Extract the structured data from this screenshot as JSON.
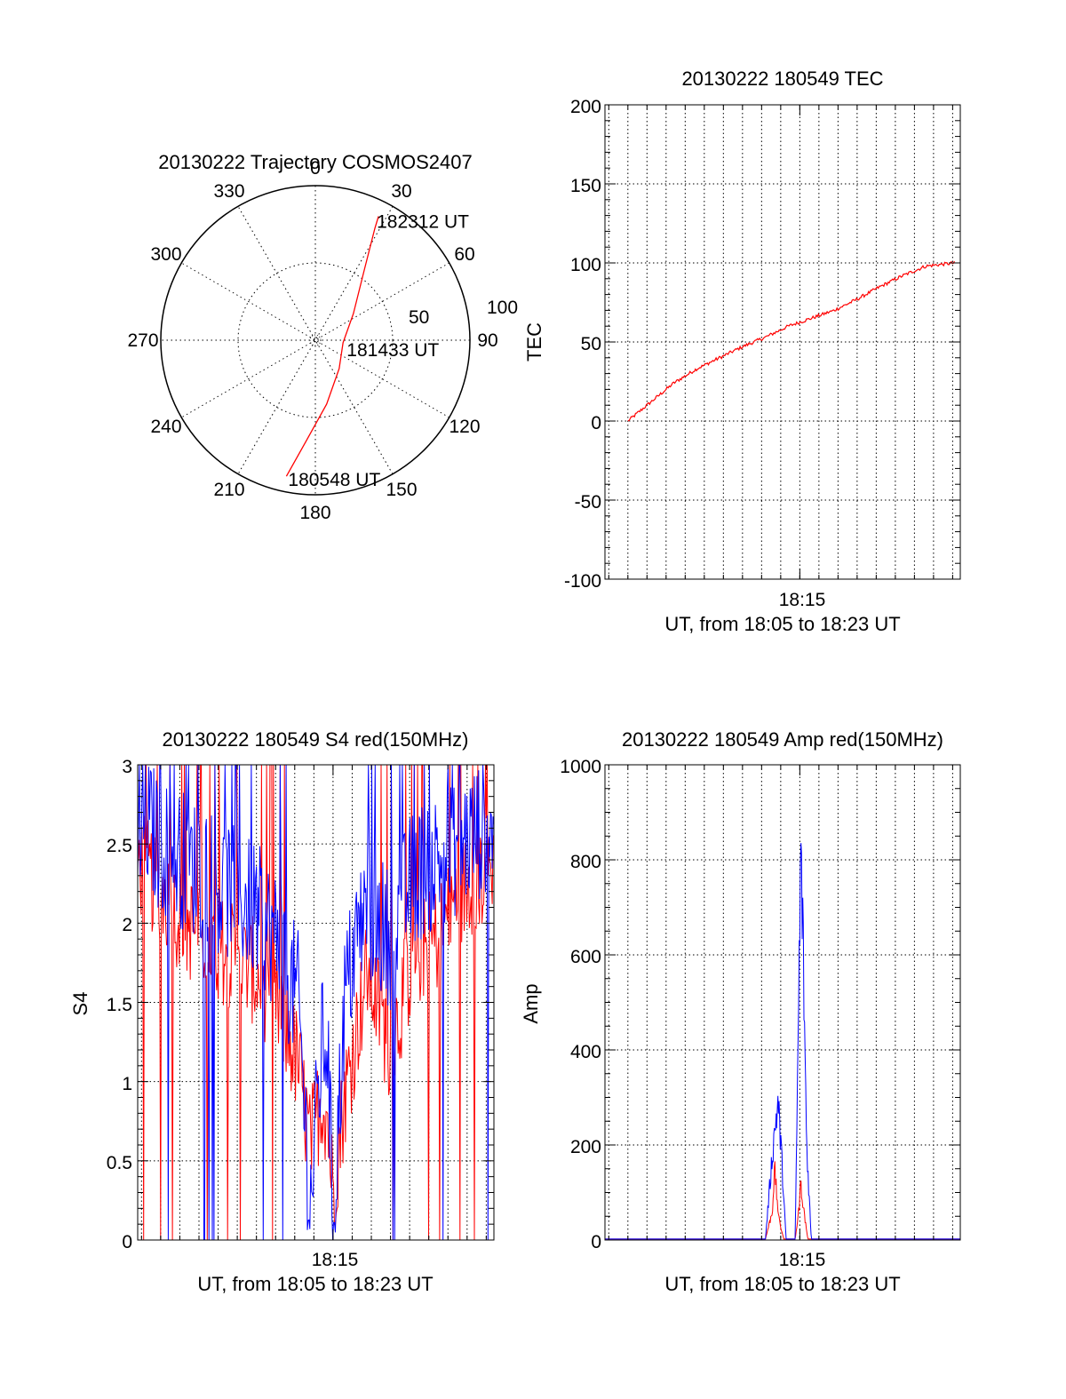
{
  "colors": {
    "red": "#ff0000",
    "blue": "#0000ff",
    "axis": "#000000",
    "grid": "#000000"
  },
  "chart_data": [
    {
      "id": "trajectory",
      "type": "polar",
      "title": "20130222 Trajectory COSMOS2407",
      "angle_labels": [
        "0",
        "30",
        "60",
        "90",
        "120",
        "150",
        "180",
        "210",
        "240",
        "270",
        "300",
        "330"
      ],
      "radius_labels": [
        "50",
        "100"
      ],
      "rlim": [
        0,
        100
      ],
      "grid": true,
      "series": [
        {
          "color": "red",
          "points": [
            {
              "azimuth": 192,
              "zenith": 90
            },
            {
              "azimuth": 185,
              "zenith": 65
            },
            {
              "azimuth": 170,
              "zenith": 42
            },
            {
              "azimuth": 140,
              "zenith": 24
            },
            {
              "azimuth": 95,
              "zenith": 18
            },
            {
              "azimuth": 55,
              "zenith": 30
            },
            {
              "azimuth": 35,
              "zenith": 55
            },
            {
              "azimuth": 28,
              "zenith": 82
            },
            {
              "azimuth": 27,
              "zenith": 90
            }
          ]
        }
      ],
      "annotations": [
        {
          "text": "182312 UT",
          "azimuth": 27,
          "zenith": 90
        },
        {
          "text": "181433 UT",
          "azimuth": 90,
          "zenith": 18
        },
        {
          "text": "180548 UT",
          "azimuth": 192,
          "zenith": 90
        }
      ]
    },
    {
      "id": "tec",
      "type": "line",
      "title": "20130222 180549 TEC",
      "xlabel": "UT, from 18:05 to 18:23 UT",
      "ylabel": "TEC",
      "xlim": [
        18.08,
        18.39
      ],
      "ylim": [
        -100,
        200
      ],
      "yticks": [
        "-100",
        "-50",
        "0",
        "50",
        "100",
        "150",
        "200"
      ],
      "xtick_labels": [
        {
          "x": 18.25,
          "label": "18:15"
        }
      ],
      "grid": true,
      "series": [
        {
          "color": "red",
          "x": [
            18.1,
            18.12,
            18.14,
            18.16,
            18.18,
            18.2,
            18.22,
            18.24,
            18.26,
            18.28,
            18.3,
            18.32,
            18.34,
            18.36,
            18.385
          ],
          "y": [
            0,
            12,
            24,
            33,
            40,
            47,
            53,
            60,
            65,
            70,
            77,
            85,
            92,
            98,
            100
          ]
        }
      ]
    },
    {
      "id": "s4",
      "type": "line",
      "title": "20130222 180549 S4 red(150MHz)",
      "xlabel": "UT, from 18:05 to 18:23 UT",
      "ylabel": "S4",
      "xlim": [
        18.08,
        18.39
      ],
      "ylim": [
        0,
        3
      ],
      "yticks": [
        "0",
        "0.5",
        "1",
        "1.5",
        "2",
        "2.5",
        "3"
      ],
      "xtick_labels": [
        {
          "x": 18.25,
          "label": "18:15"
        }
      ],
      "grid": true,
      "series": [
        {
          "color": "red",
          "x": [
            18.08,
            18.1,
            18.12,
            18.14,
            18.16,
            18.18,
            18.2,
            18.22,
            18.23,
            18.24,
            18.245,
            18.25,
            18.26,
            18.27,
            18.28,
            18.3,
            18.32,
            18.34,
            18.36,
            18.38,
            18.39
          ],
          "y": [
            2.4,
            2.2,
            2.0,
            1.9,
            1.8,
            1.7,
            1.5,
            1.1,
            0.6,
            0.9,
            0.8,
            0.3,
            0.9,
            1.3,
            1.7,
            1.2,
            1.8,
            1.9,
            2.2,
            2.3,
            2.4
          ]
        },
        {
          "color": "blue",
          "x": [
            18.08,
            18.1,
            18.12,
            18.14,
            18.16,
            18.18,
            18.2,
            18.22,
            18.23,
            18.24,
            18.245,
            18.25,
            18.26,
            18.27,
            18.28,
            18.3,
            18.32,
            18.34,
            18.36,
            18.38,
            18.39
          ],
          "y": [
            2.7,
            2.5,
            2.4,
            2.3,
            2.2,
            2.1,
            1.9,
            1.5,
            0.2,
            1.2,
            1.3,
            0.1,
            1.5,
            1.9,
            2.1,
            1.9,
            2.3,
            2.4,
            2.5,
            2.6,
            2.7
          ]
        }
      ]
    },
    {
      "id": "amp",
      "type": "line",
      "title": "20130222 180549 Amp red(150MHz)",
      "xlabel": "UT, from 18:05 to 18:23 UT",
      "ylabel": "Amp",
      "xlim": [
        18.08,
        18.39
      ],
      "ylim": [
        0,
        1000
      ],
      "yticks": [
        "0",
        "200",
        "400",
        "600",
        "800",
        "1000"
      ],
      "xtick_labels": [
        {
          "x": 18.25,
          "label": "18:15"
        }
      ],
      "grid": true,
      "series": [
        {
          "color": "red",
          "x": [
            18.08,
            18.22,
            18.226,
            18.228,
            18.23,
            18.232,
            18.236,
            18.246,
            18.249,
            18.251,
            18.253,
            18.257,
            18.39
          ],
          "y": [
            2,
            2,
            60,
            150,
            90,
            40,
            2,
            2,
            60,
            120,
            70,
            2,
            2
          ]
        },
        {
          "color": "blue",
          "x": [
            18.08,
            18.22,
            18.225,
            18.228,
            18.231,
            18.234,
            18.238,
            18.246,
            18.249,
            18.251,
            18.253,
            18.256,
            18.26,
            18.39
          ],
          "y": [
            2,
            2,
            150,
            230,
            290,
            180,
            2,
            2,
            500,
            815,
            600,
            200,
            2,
            2
          ]
        }
      ]
    }
  ]
}
